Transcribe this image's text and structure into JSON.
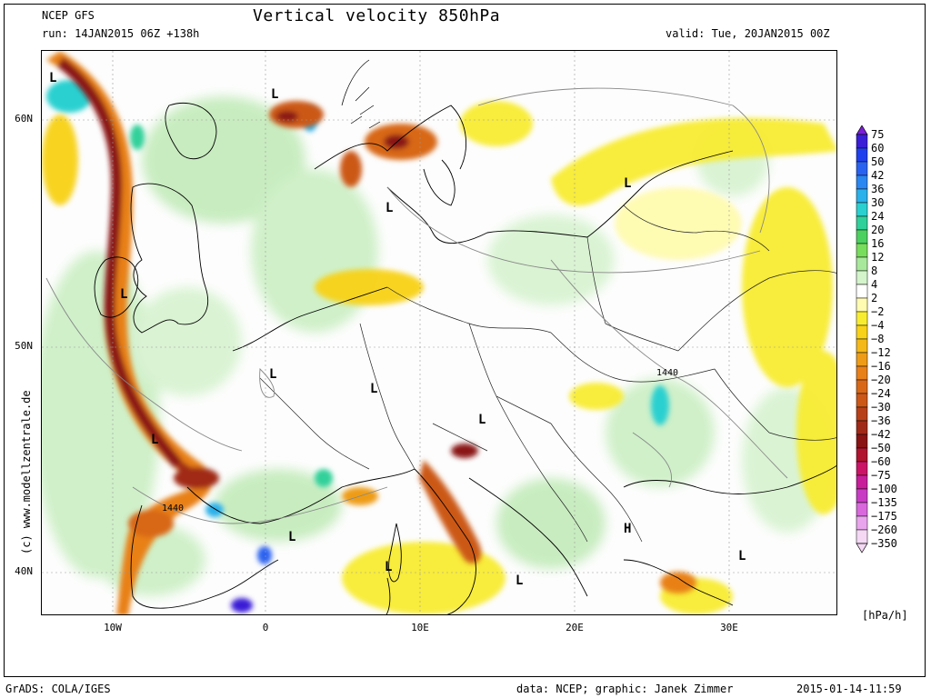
{
  "header": {
    "model": "NCEP GFS",
    "run": "run: 14JAN2015 06Z +138h",
    "title": "Vertical velocity 850hPa",
    "valid": "valid: Tue, 20JAN2015 00Z"
  },
  "axes": {
    "lat_labels": [
      "60N",
      "50N",
      "40N"
    ],
    "lon_labels": [
      "10W",
      "0",
      "10E",
      "20E",
      "30E"
    ]
  },
  "map_labels": {
    "lows": [
      "L",
      "L",
      "L",
      "L",
      "L",
      "L",
      "L",
      "L",
      "L",
      "L",
      "L",
      "L",
      "L"
    ],
    "high": "H",
    "isobar_1": "1440",
    "isobar_2": "1440"
  },
  "legend": {
    "unit": "[hPa/h]",
    "levels": [
      "75",
      "60",
      "50",
      "42",
      "36",
      "30",
      "24",
      "20",
      "16",
      "12",
      "8",
      "4",
      "2",
      "−2",
      "−4",
      "−8",
      "−12",
      "−16",
      "−20",
      "−24",
      "−30",
      "−36",
      "−42",
      "−50",
      "−60",
      "−75",
      "−100",
      "−135",
      "−175",
      "−260",
      "−350"
    ],
    "colors": [
      "#7b1fd6",
      "#3a1fd6",
      "#2040ee",
      "#2a62f0",
      "#2a86f0",
      "#2ab0ea",
      "#2ad0d0",
      "#30d09a",
      "#4cd060",
      "#78dc5c",
      "#a8e89c",
      "#d4f4cc",
      "#ffffff",
      "#fffbb0",
      "#f8ec30",
      "#f8d218",
      "#f4b818",
      "#ee9c18",
      "#e88018",
      "#d86818",
      "#cc5818",
      "#b84018",
      "#a02a18",
      "#8a1414",
      "#b0142e",
      "#cc1466",
      "#c81e9a",
      "#c83cc4",
      "#d868dc",
      "#e8a4ec",
      "#f4d8f4"
    ]
  },
  "side_credit": "(c) www.modellzentrale.de",
  "footer": {
    "left": "GrADS: COLA/IGES",
    "center": "data: NCEP; graphic: Janek Zimmer",
    "right": "2015-01-14-11:59"
  }
}
